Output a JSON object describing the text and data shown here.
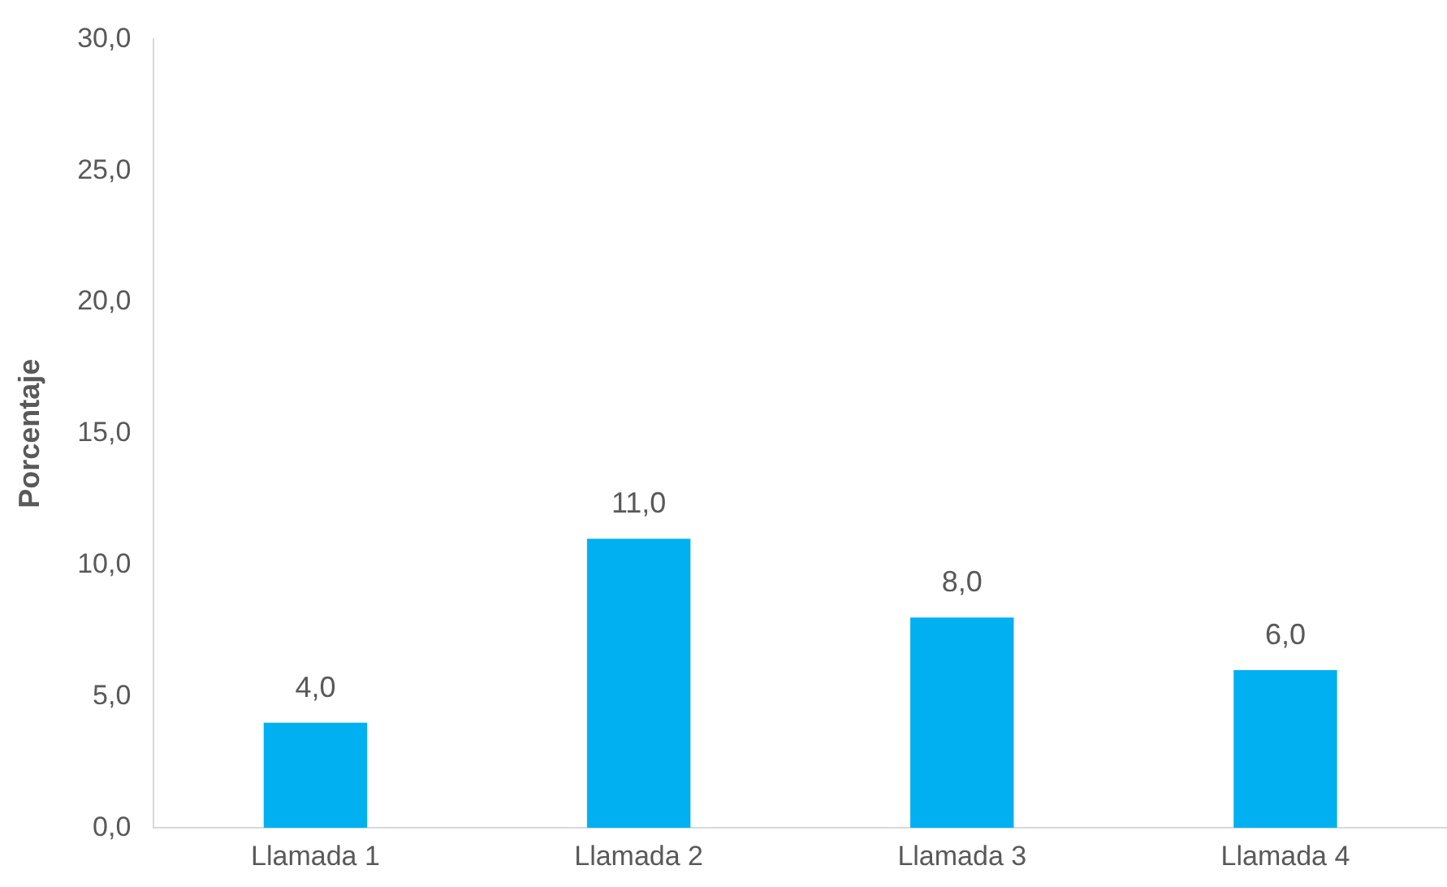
{
  "chart_data": {
    "type": "bar",
    "ylabel": "Porcentaje",
    "categories": [
      "Llamada 1",
      "Llamada 2",
      "Llamada 3",
      "Llamada 4"
    ],
    "values": [
      4,
      11,
      8,
      6
    ],
    "value_labels": [
      "4,0",
      "11,0",
      "8,0",
      "6,0"
    ],
    "color": "#00b0f0",
    "ylim": [
      0,
      30
    ],
    "yticks": [
      {
        "value": 0,
        "label": "0,0"
      },
      {
        "value": 5,
        "label": "5,0"
      },
      {
        "value": 10,
        "label": "10,0"
      },
      {
        "value": 15,
        "label": "15,0"
      },
      {
        "value": 20,
        "label": "20,0"
      },
      {
        "value": 25,
        "label": "25,0"
      },
      {
        "value": 30,
        "label": "30,0"
      }
    ],
    "grid": false,
    "legend": false
  }
}
